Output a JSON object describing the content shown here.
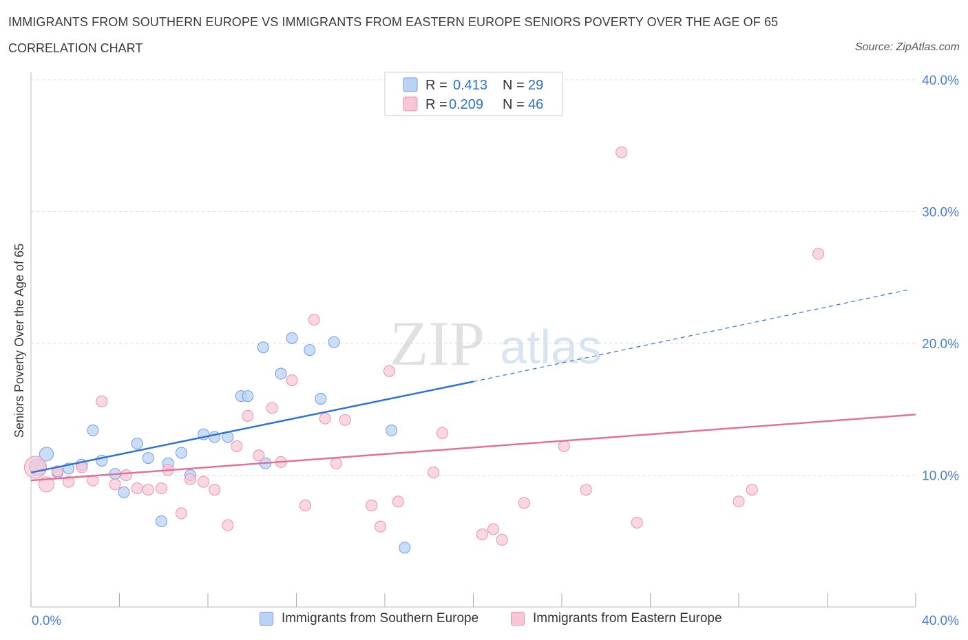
{
  "header": {
    "title": "IMMIGRANTS FROM SOUTHERN EUROPE VS IMMIGRANTS FROM EASTERN EUROPE SENIORS POVERTY OVER THE AGE OF 65",
    "subtitle": "CORRELATION CHART",
    "source": "Source: ZipAtlas.com"
  },
  "watermark": "ZIPatlas",
  "colors": {
    "blue_fill": "#b9d2f5",
    "blue_stroke": "#6f9be0",
    "blue_line": "#2f73d4",
    "pink_fill": "#f9c6d6",
    "pink_stroke": "#e990ad",
    "pink_line": "#e4709a",
    "tick_text": "#4a7fd0",
    "grid": "#dddddd"
  },
  "legend": {
    "rows": [
      {
        "r_label": "R =",
        "r_value": "0.413",
        "n_label": "N =",
        "n_value": "29"
      },
      {
        "r_label": "R =",
        "r_value": "0.209",
        "n_label": "N =",
        "n_value": "46"
      }
    ]
  },
  "bottom_legend": {
    "items": [
      "Immigrants from Southern Europe",
      "Immigrants from Eastern Europe"
    ]
  },
  "chart_data": {
    "type": "scatter",
    "title": "IMMIGRANTS FROM SOUTHERN EUROPE VS IMMIGRANTS FROM EASTERN EUROPE SENIORS POVERTY OVER THE AGE OF 65",
    "xlabel": "",
    "ylabel": "Seniors Poverty Over the Age of 65",
    "xlim": [
      0,
      40
    ],
    "ylim": [
      0,
      40
    ],
    "x_tick_labels": [
      "0.0%",
      "40.0%"
    ],
    "y_ticks": [
      10,
      20,
      30,
      40
    ],
    "y_tick_labels": [
      "10.0%",
      "20.0%",
      "30.0%",
      "40.0%"
    ],
    "grid": true,
    "legend_position": "top-center",
    "series": [
      {
        "name": "Immigrants from Southern Europe",
        "color": "#b9d2f5",
        "trend": {
          "x": [
            0.0,
            20.0
          ],
          "y": [
            10.2,
            17.1
          ],
          "dashed_to": [
            40.0,
            24.1
          ]
        },
        "points": [
          [
            0.3,
            10.6
          ],
          [
            0.7,
            11.6
          ],
          [
            1.2,
            10.2
          ],
          [
            1.7,
            10.5
          ],
          [
            2.3,
            10.8
          ],
          [
            2.8,
            13.4
          ],
          [
            3.2,
            11.1
          ],
          [
            3.8,
            10.1
          ],
          [
            4.2,
            8.7
          ],
          [
            4.8,
            12.4
          ],
          [
            5.3,
            11.3
          ],
          [
            5.9,
            6.5
          ],
          [
            6.2,
            10.9
          ],
          [
            6.8,
            11.7
          ],
          [
            7.2,
            10.0
          ],
          [
            7.8,
            13.1
          ],
          [
            8.3,
            12.9
          ],
          [
            8.9,
            12.9
          ],
          [
            9.5,
            16.0
          ],
          [
            9.8,
            16.0
          ],
          [
            10.5,
            19.7
          ],
          [
            10.6,
            10.9
          ],
          [
            11.3,
            17.7
          ],
          [
            11.8,
            20.4
          ],
          [
            12.6,
            19.5
          ],
          [
            13.1,
            15.8
          ],
          [
            13.7,
            20.1
          ],
          [
            16.3,
            13.4
          ],
          [
            16.9,
            4.5
          ]
        ]
      },
      {
        "name": "Immigrants from Eastern Europe",
        "color": "#f9c6d6",
        "trend": {
          "x": [
            0.0,
            40.0
          ],
          "y": [
            9.6,
            14.6
          ]
        },
        "points": [
          [
            0.2,
            10.6
          ],
          [
            0.7,
            9.3
          ],
          [
            1.2,
            10.3
          ],
          [
            1.7,
            9.5
          ],
          [
            2.3,
            10.6
          ],
          [
            2.8,
            9.6
          ],
          [
            3.2,
            15.6
          ],
          [
            3.8,
            9.3
          ],
          [
            4.3,
            10.0
          ],
          [
            4.8,
            9.0
          ],
          [
            5.3,
            8.9
          ],
          [
            5.9,
            9.0
          ],
          [
            6.2,
            10.4
          ],
          [
            6.8,
            7.1
          ],
          [
            7.2,
            9.7
          ],
          [
            7.8,
            9.5
          ],
          [
            8.3,
            8.9
          ],
          [
            8.9,
            6.2
          ],
          [
            9.3,
            12.2
          ],
          [
            9.8,
            14.5
          ],
          [
            10.3,
            11.5
          ],
          [
            10.9,
            15.1
          ],
          [
            11.3,
            11.0
          ],
          [
            11.8,
            17.2
          ],
          [
            12.4,
            7.7
          ],
          [
            12.8,
            21.8
          ],
          [
            13.3,
            14.3
          ],
          [
            13.8,
            10.9
          ],
          [
            14.2,
            14.2
          ],
          [
            15.4,
            7.7
          ],
          [
            15.8,
            6.1
          ],
          [
            16.2,
            17.9
          ],
          [
            16.6,
            8.0
          ],
          [
            18.2,
            10.2
          ],
          [
            18.6,
            13.2
          ],
          [
            20.4,
            5.5
          ],
          [
            20.9,
            5.9
          ],
          [
            21.3,
            5.1
          ],
          [
            22.3,
            7.9
          ],
          [
            24.1,
            12.2
          ],
          [
            25.1,
            8.9
          ],
          [
            26.7,
            34.5
          ],
          [
            27.4,
            6.4
          ],
          [
            32.0,
            8.0
          ],
          [
            32.6,
            8.9
          ],
          [
            35.6,
            26.8
          ]
        ]
      }
    ]
  }
}
